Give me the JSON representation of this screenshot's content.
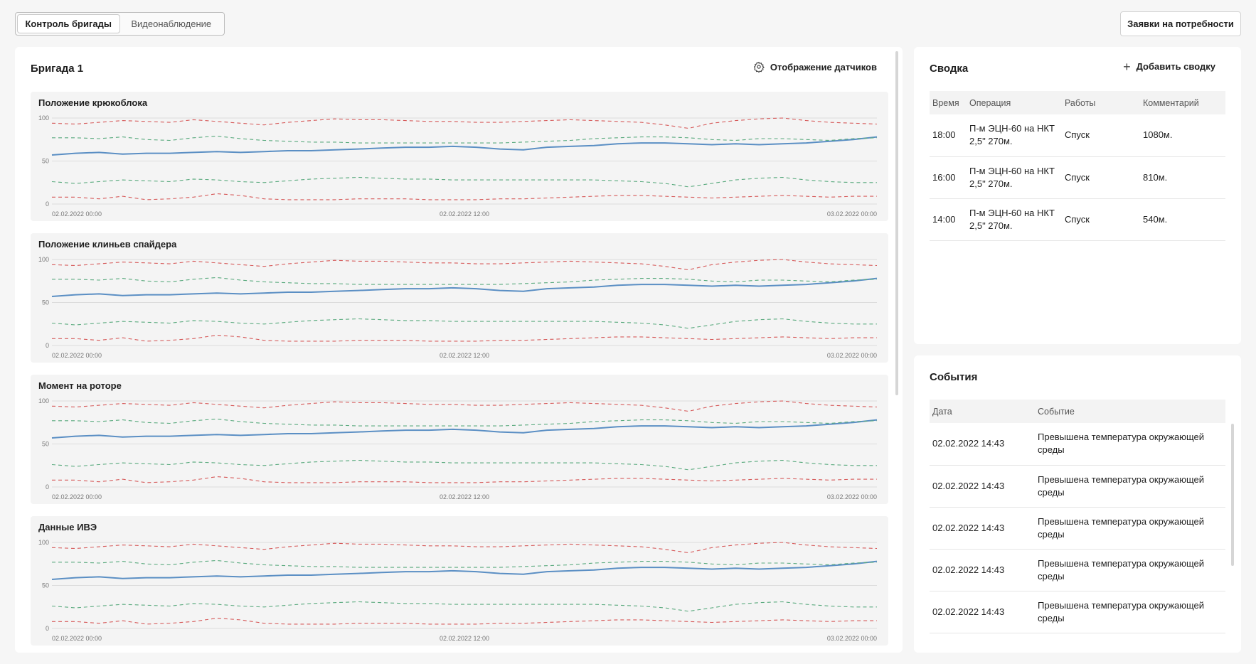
{
  "tabs": [
    "Контроль бригады",
    "Видеонаблюдение"
  ],
  "requests_button": "Заявки на потребности",
  "brigade": {
    "title": "Бригада 1",
    "sensors_button": "Отображение датчиков"
  },
  "colors": {
    "main_line": "#5b8fc4",
    "green": "#5aaa7e",
    "red": "#d65a5a"
  },
  "chart_data": [
    {
      "type": "line",
      "title": "Положение крюкоблока",
      "ylim": [
        0,
        100
      ],
      "yticks": [
        "100",
        "50",
        "0"
      ],
      "xticks": [
        "02.02.2022 00:00",
        "02.02.2022 12:00",
        "03.02.2022 00:00"
      ],
      "series": [
        {
          "style": "main",
          "values": [
            57,
            59,
            60,
            58,
            59,
            59,
            60,
            61,
            60,
            61,
            62,
            62,
            63,
            64,
            65,
            66,
            66,
            67,
            66,
            64,
            63,
            66,
            67,
            68,
            70,
            71,
            71,
            70,
            69,
            70,
            69,
            70,
            71,
            73,
            75,
            78
          ]
        },
        {
          "style": "green",
          "values": [
            77,
            77,
            76,
            78,
            75,
            74,
            77,
            79,
            76,
            74,
            73,
            72,
            72,
            71,
            71,
            71,
            71,
            71,
            71,
            71,
            72,
            73,
            74,
            76,
            77,
            78,
            78,
            77,
            75,
            74,
            76,
            76,
            75,
            74,
            76,
            77
          ]
        },
        {
          "style": "red",
          "values": [
            94,
            93,
            95,
            97,
            96,
            95,
            98,
            96,
            94,
            92,
            95,
            97,
            99,
            98,
            98,
            97,
            96,
            96,
            95,
            95,
            96,
            97,
            98,
            97,
            96,
            95,
            92,
            88,
            94,
            97,
            99,
            100,
            97,
            95,
            94,
            93
          ]
        },
        {
          "style": "green",
          "values": [
            26,
            24,
            26,
            28,
            27,
            26,
            29,
            28,
            26,
            25,
            27,
            29,
            30,
            31,
            30,
            29,
            29,
            28,
            28,
            28,
            28,
            28,
            28,
            28,
            27,
            26,
            24,
            20,
            24,
            28,
            30,
            31,
            28,
            26,
            25,
            25
          ]
        },
        {
          "style": "red",
          "values": [
            8,
            8,
            6,
            9,
            5,
            6,
            8,
            12,
            10,
            6,
            5,
            5,
            5,
            6,
            6,
            6,
            5,
            5,
            5,
            6,
            6,
            7,
            8,
            9,
            10,
            10,
            9,
            8,
            7,
            8,
            9,
            10,
            9,
            8,
            9,
            9
          ]
        }
      ]
    },
    {
      "type": "line",
      "title": "Положение клиньев спайдера",
      "ylim": [
        0,
        100
      ],
      "yticks": [
        "100",
        "50",
        "0"
      ],
      "xticks": [
        "02.02.2022 00:00",
        "02.02.2022 12:00",
        "03.02.2022 00:00"
      ],
      "series": [
        {
          "style": "main",
          "values": [
            57,
            59,
            60,
            58,
            59,
            59,
            60,
            61,
            60,
            61,
            62,
            62,
            63,
            64,
            65,
            66,
            66,
            67,
            66,
            64,
            63,
            66,
            67,
            68,
            70,
            71,
            71,
            70,
            69,
            70,
            69,
            70,
            71,
            73,
            75,
            78
          ]
        },
        {
          "style": "green",
          "values": [
            77,
            77,
            76,
            78,
            75,
            74,
            77,
            79,
            76,
            74,
            73,
            72,
            72,
            71,
            71,
            71,
            71,
            71,
            71,
            71,
            72,
            73,
            74,
            76,
            77,
            78,
            78,
            77,
            75,
            74,
            76,
            76,
            75,
            74,
            76,
            77
          ]
        },
        {
          "style": "red",
          "values": [
            94,
            93,
            95,
            97,
            96,
            95,
            98,
            96,
            94,
            92,
            95,
            97,
            99,
            98,
            98,
            97,
            96,
            96,
            95,
            95,
            96,
            97,
            98,
            97,
            96,
            95,
            92,
            88,
            94,
            97,
            99,
            100,
            97,
            95,
            94,
            93
          ]
        },
        {
          "style": "green",
          "values": [
            26,
            24,
            26,
            28,
            27,
            26,
            29,
            28,
            26,
            25,
            27,
            29,
            30,
            31,
            30,
            29,
            29,
            28,
            28,
            28,
            28,
            28,
            28,
            28,
            27,
            26,
            24,
            20,
            24,
            28,
            30,
            31,
            28,
            26,
            25,
            25
          ]
        },
        {
          "style": "red",
          "values": [
            8,
            8,
            6,
            9,
            5,
            6,
            8,
            12,
            10,
            6,
            5,
            5,
            5,
            6,
            6,
            6,
            5,
            5,
            5,
            6,
            6,
            7,
            8,
            9,
            10,
            10,
            9,
            8,
            7,
            8,
            9,
            10,
            9,
            8,
            9,
            9
          ]
        }
      ]
    },
    {
      "type": "line",
      "title": "Момент на роторе",
      "ylim": [
        0,
        100
      ],
      "yticks": [
        "100",
        "50",
        "0"
      ],
      "xticks": [
        "02.02.2022 00:00",
        "02.02.2022 12:00",
        "03.02.2022 00:00"
      ],
      "series": [
        {
          "style": "main",
          "values": [
            57,
            59,
            60,
            58,
            59,
            59,
            60,
            61,
            60,
            61,
            62,
            62,
            63,
            64,
            65,
            66,
            66,
            67,
            66,
            64,
            63,
            66,
            67,
            68,
            70,
            71,
            71,
            70,
            69,
            70,
            69,
            70,
            71,
            73,
            75,
            78
          ]
        },
        {
          "style": "green",
          "values": [
            77,
            77,
            76,
            78,
            75,
            74,
            77,
            79,
            76,
            74,
            73,
            72,
            72,
            71,
            71,
            71,
            71,
            71,
            71,
            71,
            72,
            73,
            74,
            76,
            77,
            78,
            78,
            77,
            75,
            74,
            76,
            76,
            75,
            74,
            76,
            77
          ]
        },
        {
          "style": "red",
          "values": [
            94,
            93,
            95,
            97,
            96,
            95,
            98,
            96,
            94,
            92,
            95,
            97,
            99,
            98,
            98,
            97,
            96,
            96,
            95,
            95,
            96,
            97,
            98,
            97,
            96,
            95,
            92,
            88,
            94,
            97,
            99,
            100,
            97,
            95,
            94,
            93
          ]
        },
        {
          "style": "green",
          "values": [
            26,
            24,
            26,
            28,
            27,
            26,
            29,
            28,
            26,
            25,
            27,
            29,
            30,
            31,
            30,
            29,
            29,
            28,
            28,
            28,
            28,
            28,
            28,
            28,
            27,
            26,
            24,
            20,
            24,
            28,
            30,
            31,
            28,
            26,
            25,
            25
          ]
        },
        {
          "style": "red",
          "values": [
            8,
            8,
            6,
            9,
            5,
            6,
            8,
            12,
            10,
            6,
            5,
            5,
            5,
            6,
            6,
            6,
            5,
            5,
            5,
            6,
            6,
            7,
            8,
            9,
            10,
            10,
            9,
            8,
            7,
            8,
            9,
            10,
            9,
            8,
            9,
            9
          ]
        }
      ]
    },
    {
      "type": "line",
      "title": "Данные ИВЭ",
      "ylim": [
        0,
        100
      ],
      "yticks": [
        "100",
        "50",
        "0"
      ],
      "xticks": [
        "02.02.2022 00:00",
        "02.02.2022 12:00",
        "03.02.2022 00:00"
      ],
      "series": [
        {
          "style": "main",
          "values": [
            57,
            59,
            60,
            58,
            59,
            59,
            60,
            61,
            60,
            61,
            62,
            62,
            63,
            64,
            65,
            66,
            66,
            67,
            66,
            64,
            63,
            66,
            67,
            68,
            70,
            71,
            71,
            70,
            69,
            70,
            69,
            70,
            71,
            73,
            75,
            78
          ]
        },
        {
          "style": "green",
          "values": [
            77,
            77,
            76,
            78,
            75,
            74,
            77,
            79,
            76,
            74,
            73,
            72,
            72,
            71,
            71,
            71,
            71,
            71,
            71,
            71,
            72,
            73,
            74,
            76,
            77,
            78,
            78,
            77,
            75,
            74,
            76,
            76,
            75,
            74,
            76,
            77
          ]
        },
        {
          "style": "red",
          "values": [
            94,
            93,
            95,
            97,
            96,
            95,
            98,
            96,
            94,
            92,
            95,
            97,
            99,
            98,
            98,
            97,
            96,
            96,
            95,
            95,
            96,
            97,
            98,
            97,
            96,
            95,
            92,
            88,
            94,
            97,
            99,
            100,
            97,
            95,
            94,
            93
          ]
        },
        {
          "style": "green",
          "values": [
            26,
            24,
            26,
            28,
            27,
            26,
            29,
            28,
            26,
            25,
            27,
            29,
            30,
            31,
            30,
            29,
            29,
            28,
            28,
            28,
            28,
            28,
            28,
            28,
            27,
            26,
            24,
            20,
            24,
            28,
            30,
            31,
            28,
            26,
            25,
            25
          ]
        },
        {
          "style": "red",
          "values": [
            8,
            8,
            6,
            9,
            5,
            6,
            8,
            12,
            10,
            6,
            5,
            5,
            5,
            6,
            6,
            6,
            5,
            5,
            5,
            6,
            6,
            7,
            8,
            9,
            10,
            10,
            9,
            8,
            7,
            8,
            9,
            10,
            9,
            8,
            9,
            9
          ]
        }
      ]
    }
  ],
  "summary": {
    "title": "Сводка",
    "add_button": "Добавить сводку",
    "columns": [
      "Время",
      "Операция",
      "Работы",
      "Комментарий"
    ],
    "rows": [
      {
        "time": "18:00",
        "operation_l1": "П-м ЭЦН-60 на НКТ",
        "operation_l2": "2,5\" 270м.",
        "work": "Спуск",
        "comment": "1080м."
      },
      {
        "time": "16:00",
        "operation_l1": "П-м ЭЦН-60 на НКТ",
        "operation_l2": "2,5\" 270м.",
        "work": "Спуск",
        "comment": "810м."
      },
      {
        "time": "14:00",
        "operation_l1": "П-м ЭЦН-60 на НКТ",
        "operation_l2": "2,5\" 270м.",
        "work": "Спуск",
        "comment": "540м."
      }
    ]
  },
  "events": {
    "title": "События",
    "columns": [
      "Дата",
      "Событие"
    ],
    "rows": [
      {
        "date": "02.02.2022 14:43",
        "event_l1": "Превышена температура окружающей",
        "event_l2": "среды"
      },
      {
        "date": "02.02.2022 14:43",
        "event_l1": "Превышена температура окружающей",
        "event_l2": "среды"
      },
      {
        "date": "02.02.2022 14:43",
        "event_l1": "Превышена температура окружающей",
        "event_l2": "среды"
      },
      {
        "date": "02.02.2022 14:43",
        "event_l1": "Превышена температура окружающей",
        "event_l2": "среды"
      },
      {
        "date": "02.02.2022 14:43",
        "event_l1": "Превышена температура окружающей",
        "event_l2": "среды"
      }
    ]
  }
}
